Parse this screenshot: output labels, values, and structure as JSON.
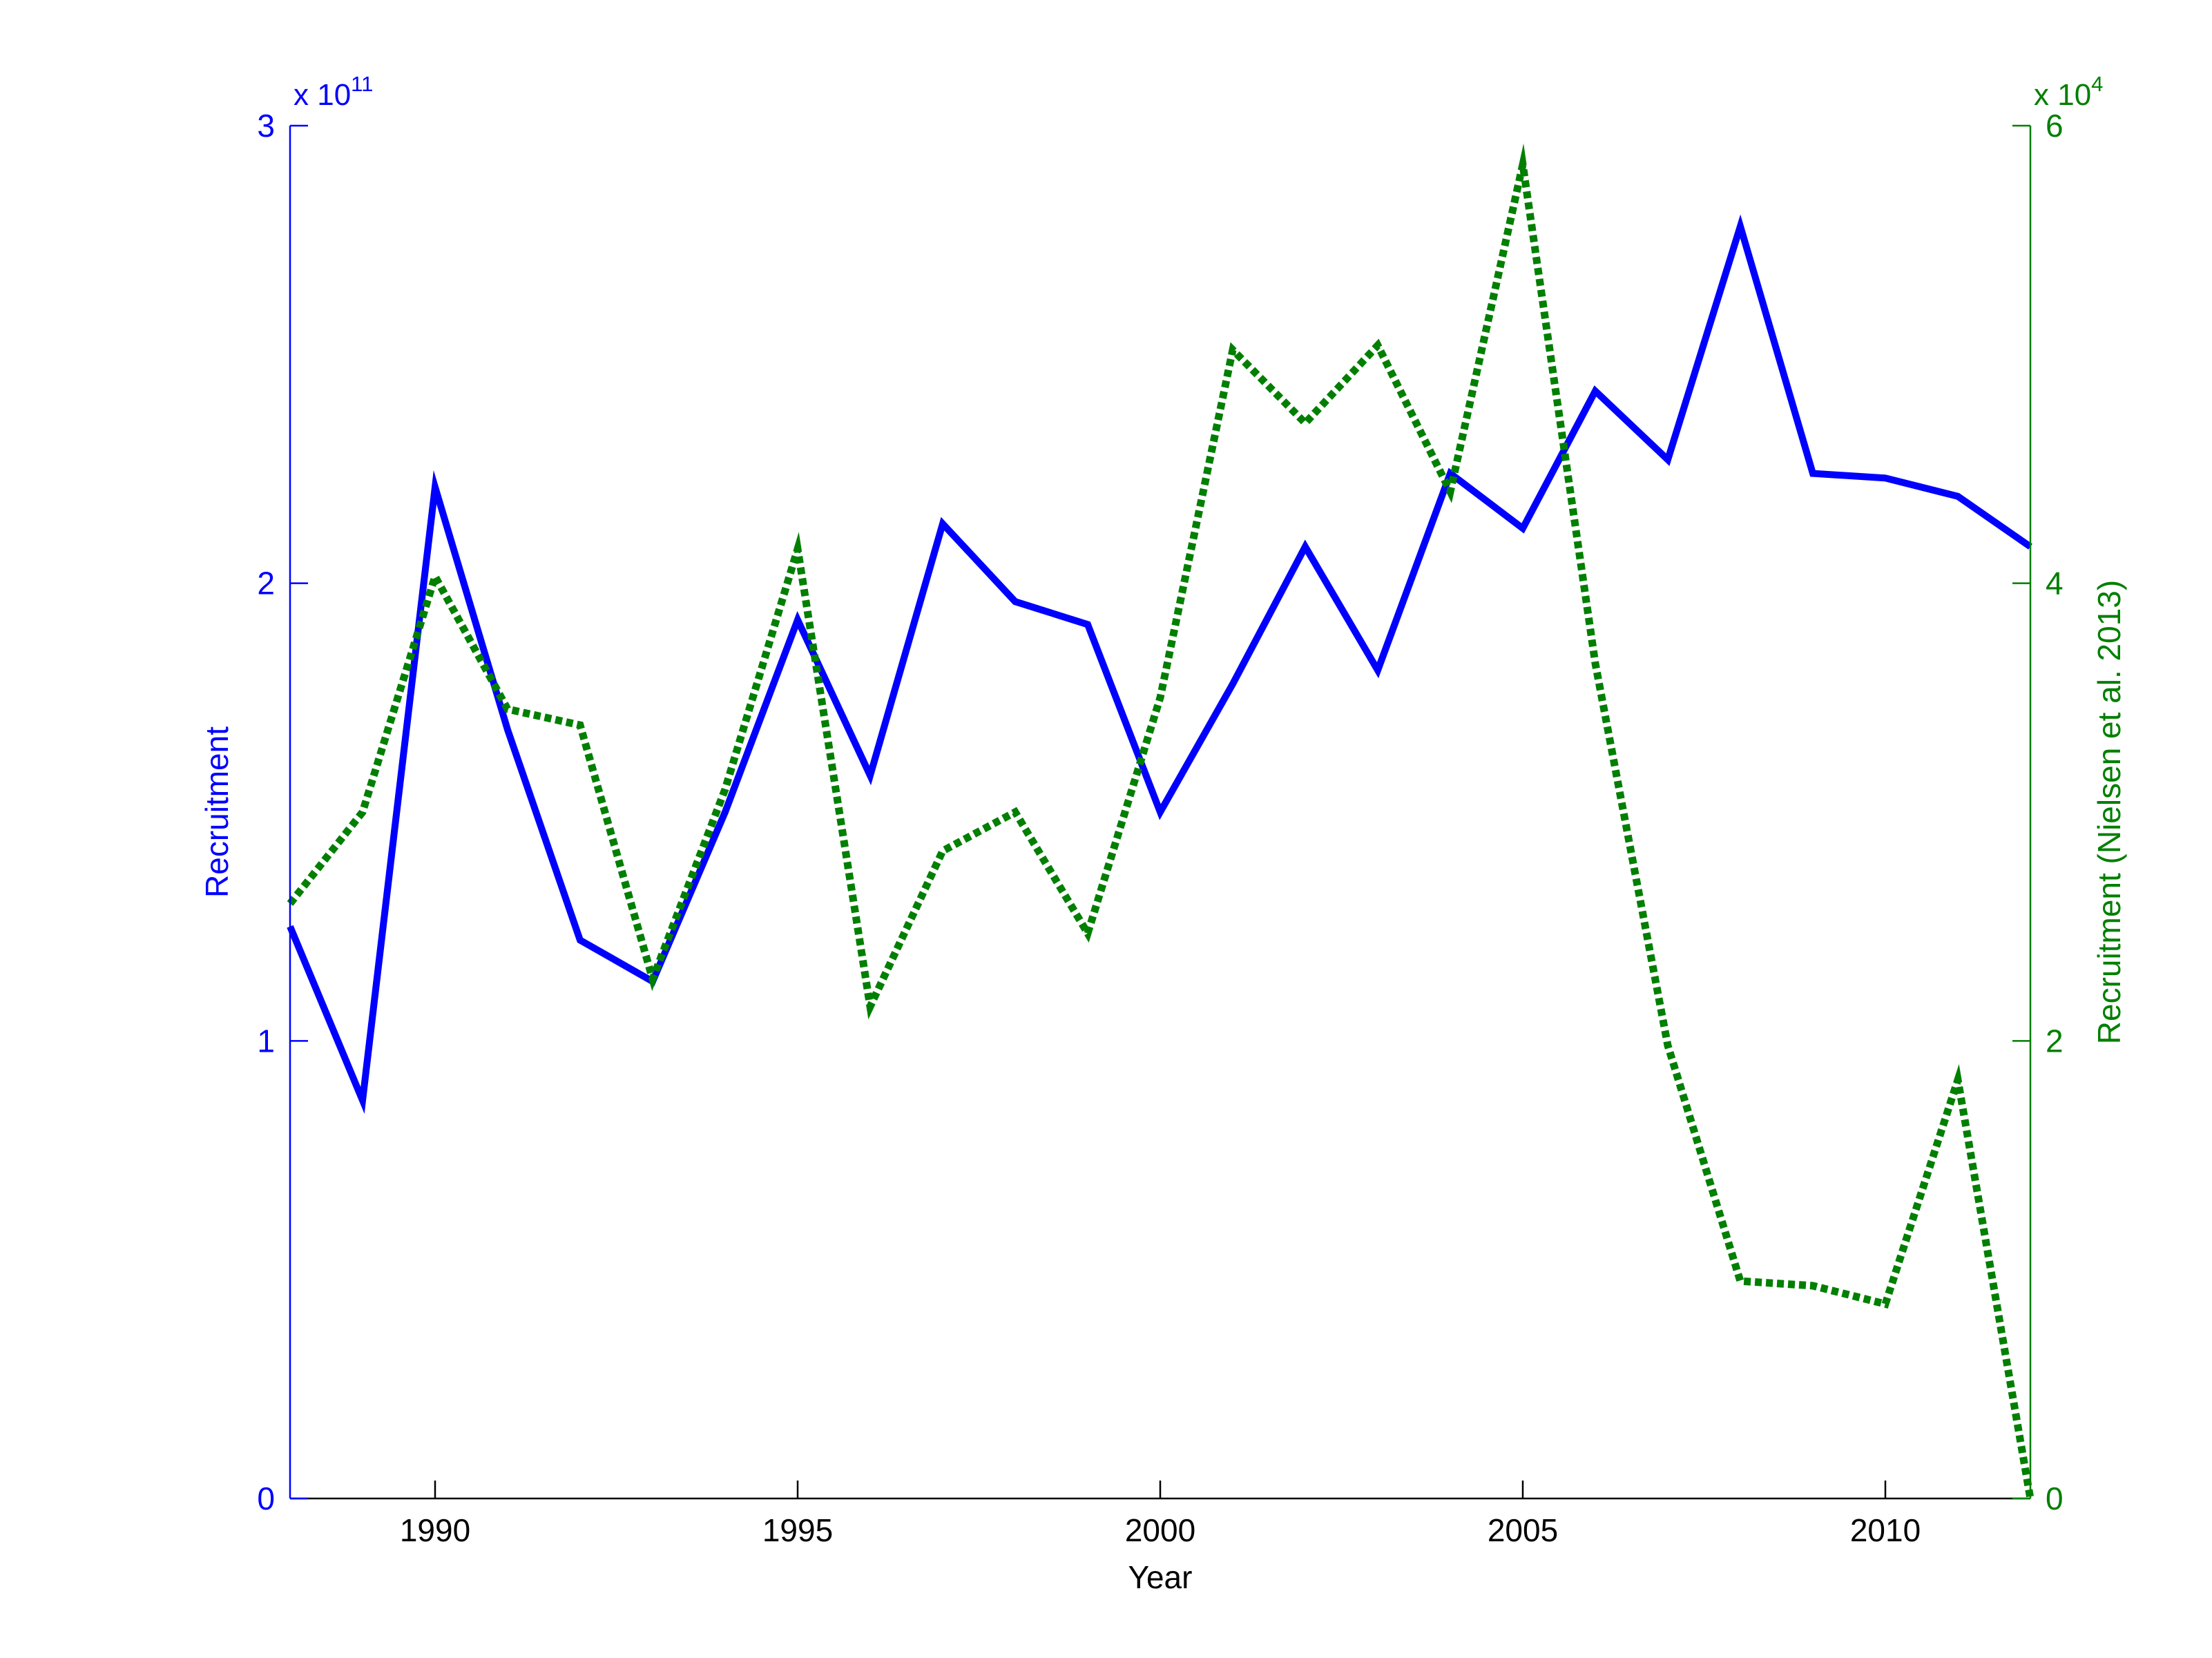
{
  "chart_data": {
    "type": "line",
    "xlabel": "Year",
    "x": [
      1988,
      1989,
      1990,
      1991,
      1992,
      1993,
      1994,
      1995,
      1996,
      1997,
      1998,
      1999,
      2000,
      2001,
      2002,
      2003,
      2004,
      2005,
      2006,
      2007,
      2008,
      2009,
      2010,
      2011,
      2012
    ],
    "xlim": [
      1988,
      2012
    ],
    "xticks": [
      "1990",
      "1995",
      "2000",
      "2005",
      "2010"
    ],
    "left_axis": {
      "label": "Recruitment",
      "ylim": [
        0,
        3
      ],
      "yticks": [
        "0",
        "1",
        "2",
        "3"
      ],
      "exponent_prefix": "x 10",
      "exponent": "11",
      "color": "#0000ff"
    },
    "right_axis": {
      "label": "Recruitment (Nielsen et al. 2013)",
      "ylim": [
        0,
        6
      ],
      "yticks": [
        "0",
        "2",
        "4",
        "6"
      ],
      "exponent_prefix": "x 10",
      "exponent": "4",
      "color": "#007f00"
    },
    "series": [
      {
        "axis": "left",
        "color": "#0000ff",
        "style": "solid",
        "values": [
          1.25,
          0.87,
          2.21,
          1.68,
          1.22,
          1.13,
          1.5,
          1.92,
          1.58,
          2.13,
          1.96,
          1.91,
          1.5,
          1.78,
          2.08,
          1.81,
          2.24,
          2.12,
          2.42,
          2.27,
          2.78,
          2.24,
          2.23,
          2.19,
          2.08
        ]
      },
      {
        "axis": "right",
        "color": "#007f00",
        "style": "dotted",
        "values": [
          2.6,
          3.0,
          4.03,
          3.45,
          3.38,
          2.27,
          3.1,
          4.15,
          2.15,
          2.83,
          3.0,
          2.47,
          3.5,
          5.02,
          4.7,
          5.04,
          4.4,
          5.83,
          3.65,
          1.98,
          0.95,
          0.93,
          0.85,
          1.83,
          0.0
        ]
      }
    ]
  }
}
